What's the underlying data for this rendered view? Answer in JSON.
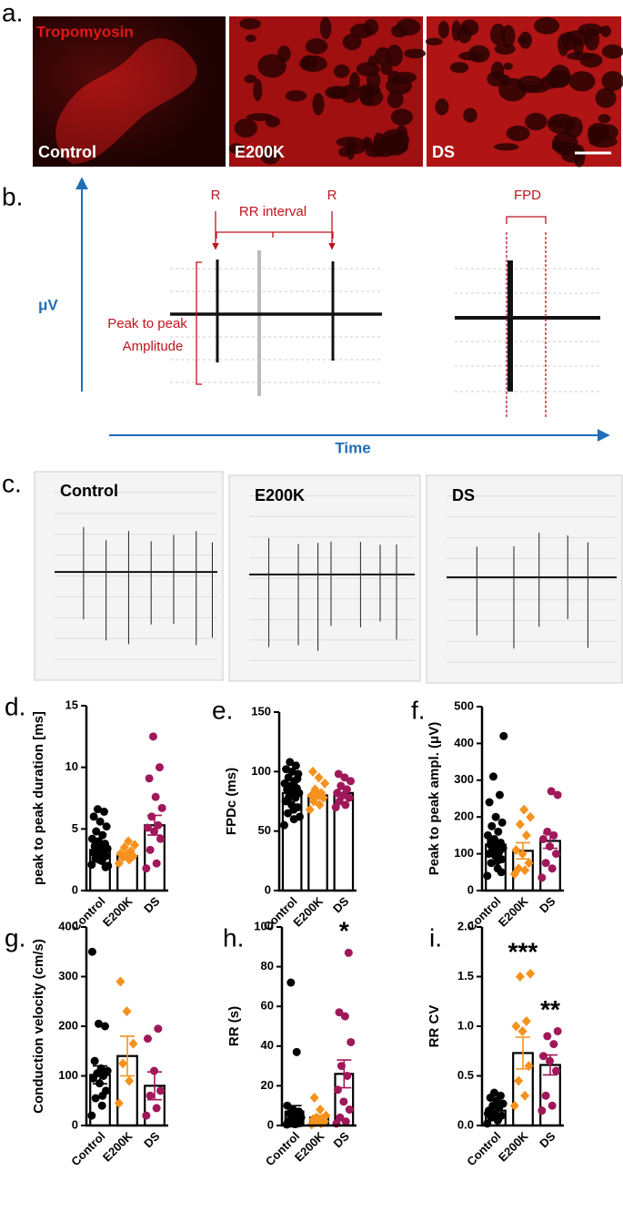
{
  "panel_a": {
    "label": "a.",
    "stain": "Tropomyosin",
    "images": [
      "Control",
      "E200K",
      "DS"
    ]
  },
  "panel_b": {
    "label": "b.",
    "y_axis": "μV",
    "x_axis": "Time",
    "r1": "R",
    "rr": "RR interval",
    "r2": "R",
    "fpd": "FPD",
    "amplitude": [
      "Peak to peak",
      "Amplitude"
    ]
  },
  "panel_c": {
    "label": "c.",
    "traces": [
      "Control",
      "E200K",
      "DS"
    ]
  },
  "chart_data": [
    {
      "type": "bar",
      "label": "d.",
      "y_label": "peak to peak duration [ms]",
      "categories": [
        "Control",
        "E200K",
        "DS"
      ],
      "values": [
        3.3,
        2.8,
        5.3
      ],
      "errors": [
        0.3,
        0.2,
        0.8
      ],
      "colors": [
        "#000000",
        "#f5921e",
        "#a0185a"
      ],
      "markers": [
        "circle",
        "diamond",
        "circle"
      ],
      "points": [
        [
          2.1,
          2.4,
          2.6,
          2.8,
          3.0,
          3.1,
          3.2,
          3.3,
          3.4,
          3.5,
          3.6,
          3.8,
          4.0,
          4.2,
          4.5,
          4.8,
          5.2,
          5.6,
          6.0,
          6.4,
          6.6,
          2.0,
          2.9,
          3.7,
          1.9,
          2.5
        ],
        [
          2.2,
          2.5,
          2.7,
          2.8,
          2.9,
          3.0,
          3.2,
          3.5,
          3.7,
          4.0
        ],
        [
          1.8,
          2.2,
          3.3,
          4.2,
          4.8,
          5.1,
          5.3,
          6.0,
          6.7,
          7.6,
          9.1,
          10.0,
          12.5
        ]
      ],
      "annotations": [
        null,
        null,
        null
      ],
      "ylim": [
        0,
        15
      ],
      "yticks": [
        0,
        5,
        10,
        15
      ]
    },
    {
      "type": "bar",
      "label": "e.",
      "y_label": "FPDc (ms)",
      "categories": [
        "Control",
        "E200K",
        "DS"
      ],
      "values": [
        82,
        80,
        82
      ],
      "errors": [
        3,
        3,
        3
      ],
      "colors": [
        "#000000",
        "#f5921e",
        "#a0185a"
      ],
      "markers": [
        "circle",
        "diamond",
        "circle"
      ],
      "points": [
        [
          55,
          60,
          65,
          70,
          72,
          75,
          78,
          80,
          82,
          84,
          85,
          86,
          88,
          90,
          92,
          95,
          98,
          100,
          102,
          105,
          108,
          62,
          68,
          76,
          94
        ],
        [
          68,
          72,
          75,
          78,
          80,
          80,
          82,
          85,
          90,
          95,
          100
        ],
        [
          70,
          72,
          75,
          78,
          80,
          82,
          85,
          88,
          92,
          95,
          98
        ]
      ],
      "annotations": [
        null,
        null,
        null
      ],
      "ylim": [
        0,
        150
      ],
      "yticks": [
        0,
        50,
        100,
        150
      ]
    },
    {
      "type": "bar",
      "label": "f.",
      "y_label": "Peak to peak ampl. (μV)",
      "categories": [
        "Control",
        "E200K",
        "DS"
      ],
      "values": [
        125,
        108,
        135
      ],
      "errors": [
        12,
        22,
        20
      ],
      "colors": [
        "#000000",
        "#f5921e",
        "#a0185a"
      ],
      "markers": [
        "circle",
        "diamond",
        "circle"
      ],
      "points": [
        [
          40,
          60,
          75,
          85,
          95,
          100,
          105,
          110,
          115,
          120,
          125,
          130,
          140,
          150,
          160,
          175,
          185,
          200,
          240,
          260,
          310,
          420,
          80,
          135,
          50
        ],
        [
          45,
          55,
          60,
          75,
          100,
          110,
          150,
          180,
          200,
          220
        ],
        [
          35,
          60,
          75,
          100,
          120,
          140,
          150,
          160,
          260,
          270
        ]
      ],
      "annotations": [
        null,
        null,
        null
      ],
      "ylim": [
        0,
        500
      ],
      "yticks": [
        0,
        100,
        200,
        300,
        400,
        500
      ]
    },
    {
      "type": "bar",
      "label": "g.",
      "y_label": "Conduction velocity (cm/s)",
      "categories": [
        "Control",
        "E200K",
        "DS"
      ],
      "values": [
        102,
        140,
        80
      ],
      "errors": [
        18,
        40,
        28
      ],
      "colors": [
        "#000000",
        "#f5921e",
        "#a0185a"
      ],
      "markers": [
        "circle",
        "diamond",
        "circle"
      ],
      "points": [
        [
          20,
          40,
          55,
          70,
          85,
          95,
          100,
          105,
          110,
          115,
          130,
          200,
          205,
          350,
          60
        ],
        [
          45,
          90,
          125,
          165,
          230,
          290
        ],
        [
          20,
          35,
          60,
          70,
          110,
          175,
          195
        ]
      ],
      "annotations": [
        null,
        null,
        null
      ],
      "ylim": [
        0,
        400
      ],
      "yticks": [
        0,
        100,
        200,
        300,
        400
      ]
    },
    {
      "type": "bar",
      "label": "h.",
      "y_label": "RR (s)",
      "categories": [
        "Control",
        "E200K",
        "DS"
      ],
      "values": [
        7,
        4,
        26
      ],
      "errors": [
        3,
        1,
        7
      ],
      "colors": [
        "#000000",
        "#f5921e",
        "#a0185a"
      ],
      "markers": [
        "circle",
        "diamond",
        "circle"
      ],
      "points": [
        [
          0.5,
          0.8,
          1,
          1.2,
          1.5,
          2,
          2.5,
          3,
          4,
          5,
          6,
          7,
          8,
          10,
          37,
          72,
          1.8,
          0.7
        ],
        [
          0.5,
          1,
          1.5,
          2,
          2.5,
          3,
          3.5,
          4,
          5,
          8,
          14
        ],
        [
          1,
          2,
          4,
          8,
          12,
          18,
          25,
          30,
          42,
          55,
          57,
          87
        ]
      ],
      "annotations": [
        null,
        null,
        "*"
      ],
      "ylim": [
        0,
        100
      ],
      "yticks": [
        0,
        20,
        40,
        60,
        80,
        100
      ]
    },
    {
      "type": "bar",
      "label": "i.",
      "y_label": "RR CV",
      "categories": [
        "Control",
        "E200K",
        "DS"
      ],
      "values": [
        0.15,
        0.73,
        0.61
      ],
      "errors": [
        0.03,
        0.16,
        0.1
      ],
      "colors": [
        "#000000",
        "#f5921e",
        "#a0185a"
      ],
      "markers": [
        "circle",
        "diamond",
        "circle"
      ],
      "points": [
        [
          0.02,
          0.05,
          0.08,
          0.1,
          0.12,
          0.15,
          0.18,
          0.2,
          0.22,
          0.25,
          0.28,
          0.3,
          0.33,
          0.12,
          0.06
        ],
        [
          0.2,
          0.3,
          0.45,
          0.6,
          0.95,
          1.0,
          1.05,
          1.5,
          1.53
        ],
        [
          0.15,
          0.2,
          0.3,
          0.55,
          0.65,
          0.7,
          0.82,
          0.9,
          0.95
        ]
      ],
      "annotations": [
        null,
        "***",
        "**"
      ],
      "ylim": [
        0,
        2
      ],
      "yticks": [
        {
          "value": 0,
          "label": "0.0"
        },
        0.5,
        {
          "value": 1,
          "label": "1.0"
        },
        1.5,
        {
          "value": 2,
          "label": "2.0"
        }
      ]
    }
  ]
}
